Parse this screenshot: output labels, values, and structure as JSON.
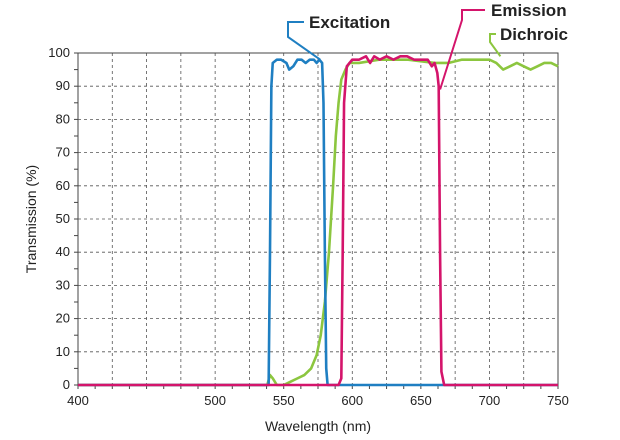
{
  "chart_data": {
    "type": "line",
    "title": "",
    "xlabel": "Wavelength (nm)",
    "ylabel": "Transmission (%)",
    "xlim": [
      400,
      750
    ],
    "ylim": [
      0,
      100
    ],
    "xticks": [
      400,
      500,
      550,
      600,
      650,
      700,
      750
    ],
    "yticks": [
      0,
      10,
      20,
      30,
      40,
      50,
      60,
      70,
      80,
      90,
      100
    ],
    "grid": true,
    "legend": "callout labels at top",
    "series": [
      {
        "name": "Excitation",
        "color": "#1f7fc2",
        "points": [
          [
            400,
            0
          ],
          [
            536,
            0
          ],
          [
            539,
            0
          ],
          [
            540,
            40
          ],
          [
            541,
            90
          ],
          [
            542,
            97
          ],
          [
            545,
            98
          ],
          [
            548,
            98
          ],
          [
            552,
            97
          ],
          [
            554,
            95
          ],
          [
            557,
            96
          ],
          [
            560,
            98
          ],
          [
            563,
            98
          ],
          [
            566,
            97
          ],
          [
            569,
            98
          ],
          [
            572,
            98
          ],
          [
            574,
            97
          ],
          [
            576,
            98
          ],
          [
            578,
            97
          ],
          [
            579,
            85
          ],
          [
            580,
            40
          ],
          [
            581,
            5
          ],
          [
            582,
            0
          ],
          [
            750,
            0
          ]
        ]
      },
      {
        "name": "Emission",
        "color": "#d4146b",
        "points": [
          [
            400,
            0
          ],
          [
            590,
            0
          ],
          [
            592,
            2
          ],
          [
            593,
            40
          ],
          [
            594,
            85
          ],
          [
            596,
            96
          ],
          [
            600,
            98
          ],
          [
            605,
            98
          ],
          [
            610,
            99
          ],
          [
            613,
            97
          ],
          [
            616,
            99
          ],
          [
            620,
            98
          ],
          [
            625,
            99
          ],
          [
            630,
            98
          ],
          [
            635,
            99
          ],
          [
            640,
            99
          ],
          [
            645,
            98
          ],
          [
            650,
            98
          ],
          [
            655,
            98
          ],
          [
            658,
            96
          ],
          [
            660,
            97
          ],
          [
            662,
            94
          ],
          [
            663,
            90
          ],
          [
            664,
            40
          ],
          [
            665,
            4
          ],
          [
            667,
            0
          ],
          [
            750,
            0
          ]
        ]
      },
      {
        "name": "Dichroic",
        "color": "#8cc63f",
        "points": [
          [
            400,
            0
          ],
          [
            520,
            0
          ],
          [
            530,
            0
          ],
          [
            535,
            0
          ],
          [
            538,
            0
          ],
          [
            540,
            3
          ],
          [
            542,
            2
          ],
          [
            545,
            0
          ],
          [
            550,
            0
          ],
          [
            555,
            1
          ],
          [
            560,
            2
          ],
          [
            565,
            3
          ],
          [
            570,
            5
          ],
          [
            574,
            9
          ],
          [
            577,
            15
          ],
          [
            580,
            25
          ],
          [
            583,
            40
          ],
          [
            586,
            60
          ],
          [
            588,
            75
          ],
          [
            590,
            85
          ],
          [
            592,
            92
          ],
          [
            595,
            95
          ],
          [
            598,
            97
          ],
          [
            605,
            97
          ],
          [
            620,
            98
          ],
          [
            640,
            98
          ],
          [
            660,
            97
          ],
          [
            670,
            97
          ],
          [
            680,
            98
          ],
          [
            690,
            98
          ],
          [
            700,
            98
          ],
          [
            705,
            97
          ],
          [
            710,
            95
          ],
          [
            715,
            96
          ],
          [
            720,
            97
          ],
          [
            725,
            96
          ],
          [
            730,
            95
          ],
          [
            735,
            96
          ],
          [
            740,
            97
          ],
          [
            745,
            97
          ],
          [
            750,
            96
          ]
        ]
      }
    ]
  }
}
